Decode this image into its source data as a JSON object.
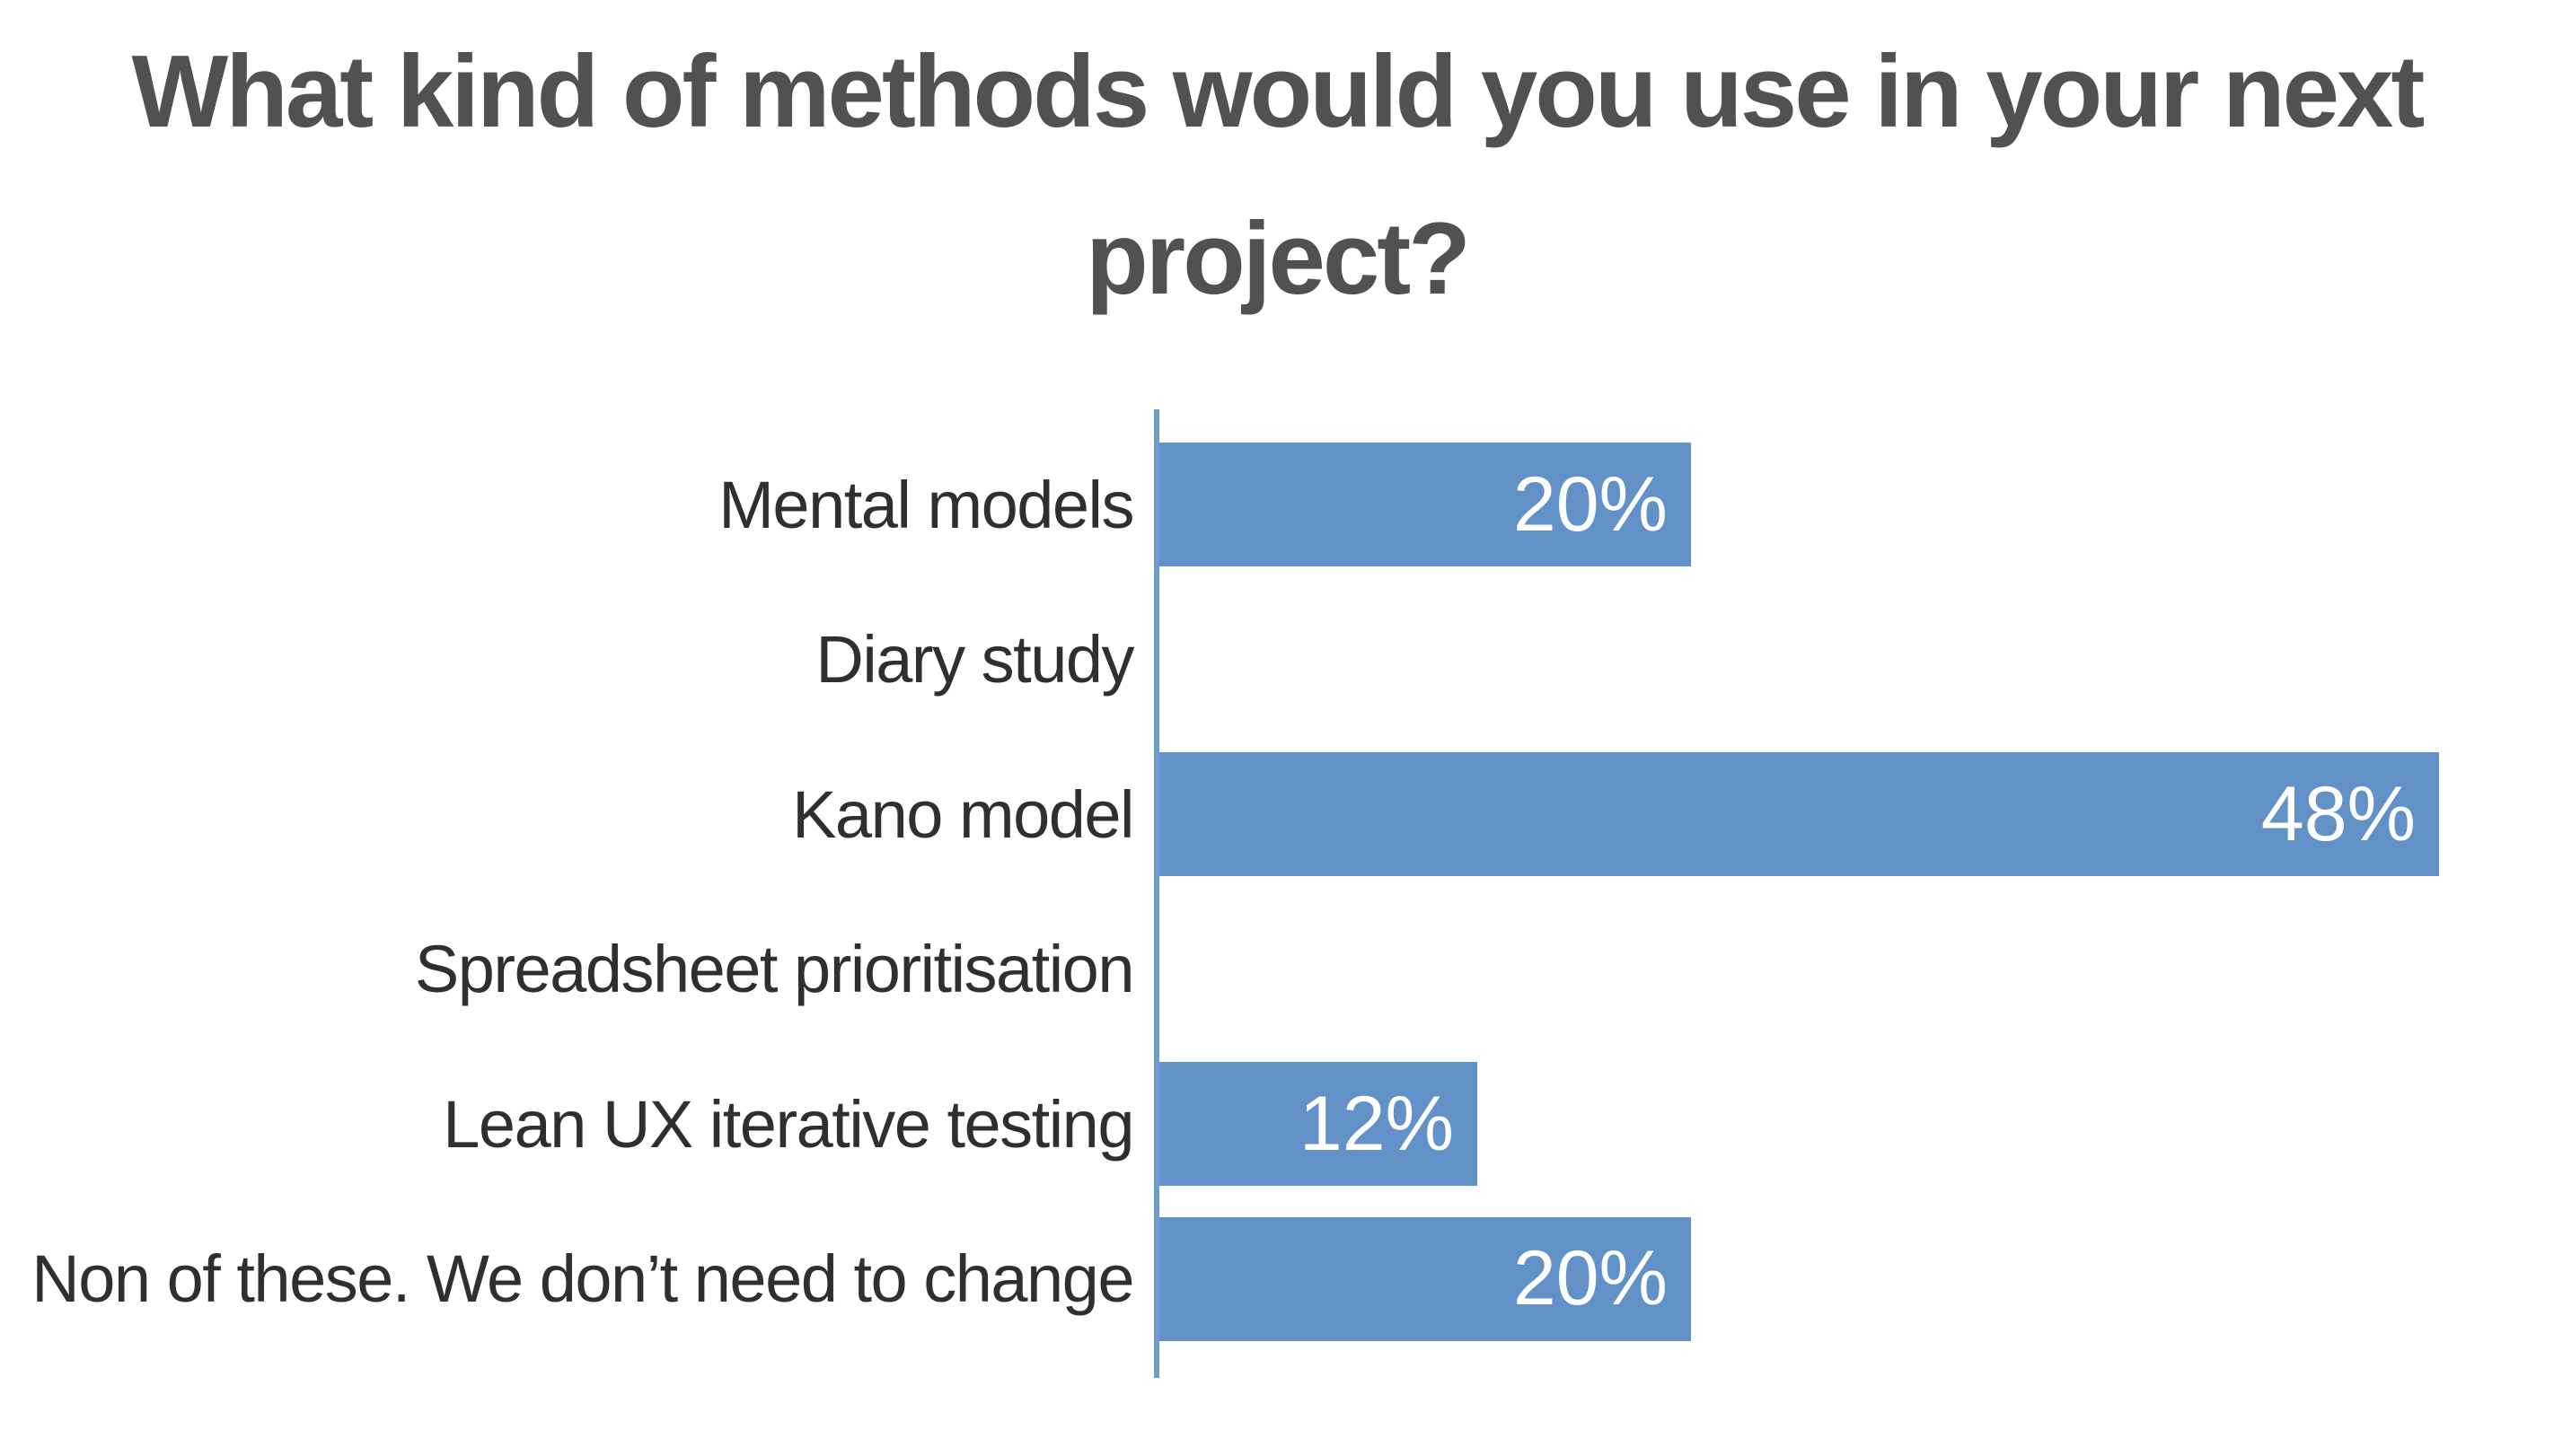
{
  "title": {
    "line1": "What kind of methods would you use in your next",
    "line2": "project?"
  },
  "chart_data": {
    "type": "bar",
    "orientation": "horizontal",
    "title": "What kind of methods would you use in your next project?",
    "categories": [
      "Mental models",
      "Diary study",
      "Kano model",
      "Spreadsheet prioritisation",
      "Lean UX iterative testing",
      "Non of these. We don’t need to change"
    ],
    "values": [
      20,
      0,
      48,
      0,
      12,
      20
    ],
    "value_labels": [
      "20%",
      "",
      "48%",
      "",
      "12%",
      "20%"
    ],
    "unit": "%",
    "xlim": [
      0,
      50
    ],
    "xlabel": "",
    "ylabel": "",
    "legend": "none",
    "gridlines": false,
    "value_label_position": "inside-end",
    "x_axis_visible": false,
    "y_axis_line_visible": true
  },
  "theme": {
    "bar_fill": "#6191c6",
    "axis_line": "#6f9ccd",
    "title_text": "#515151",
    "category_text": "#2e2f33",
    "value_text": "#ffffff",
    "page_bg": "#ffffff"
  }
}
